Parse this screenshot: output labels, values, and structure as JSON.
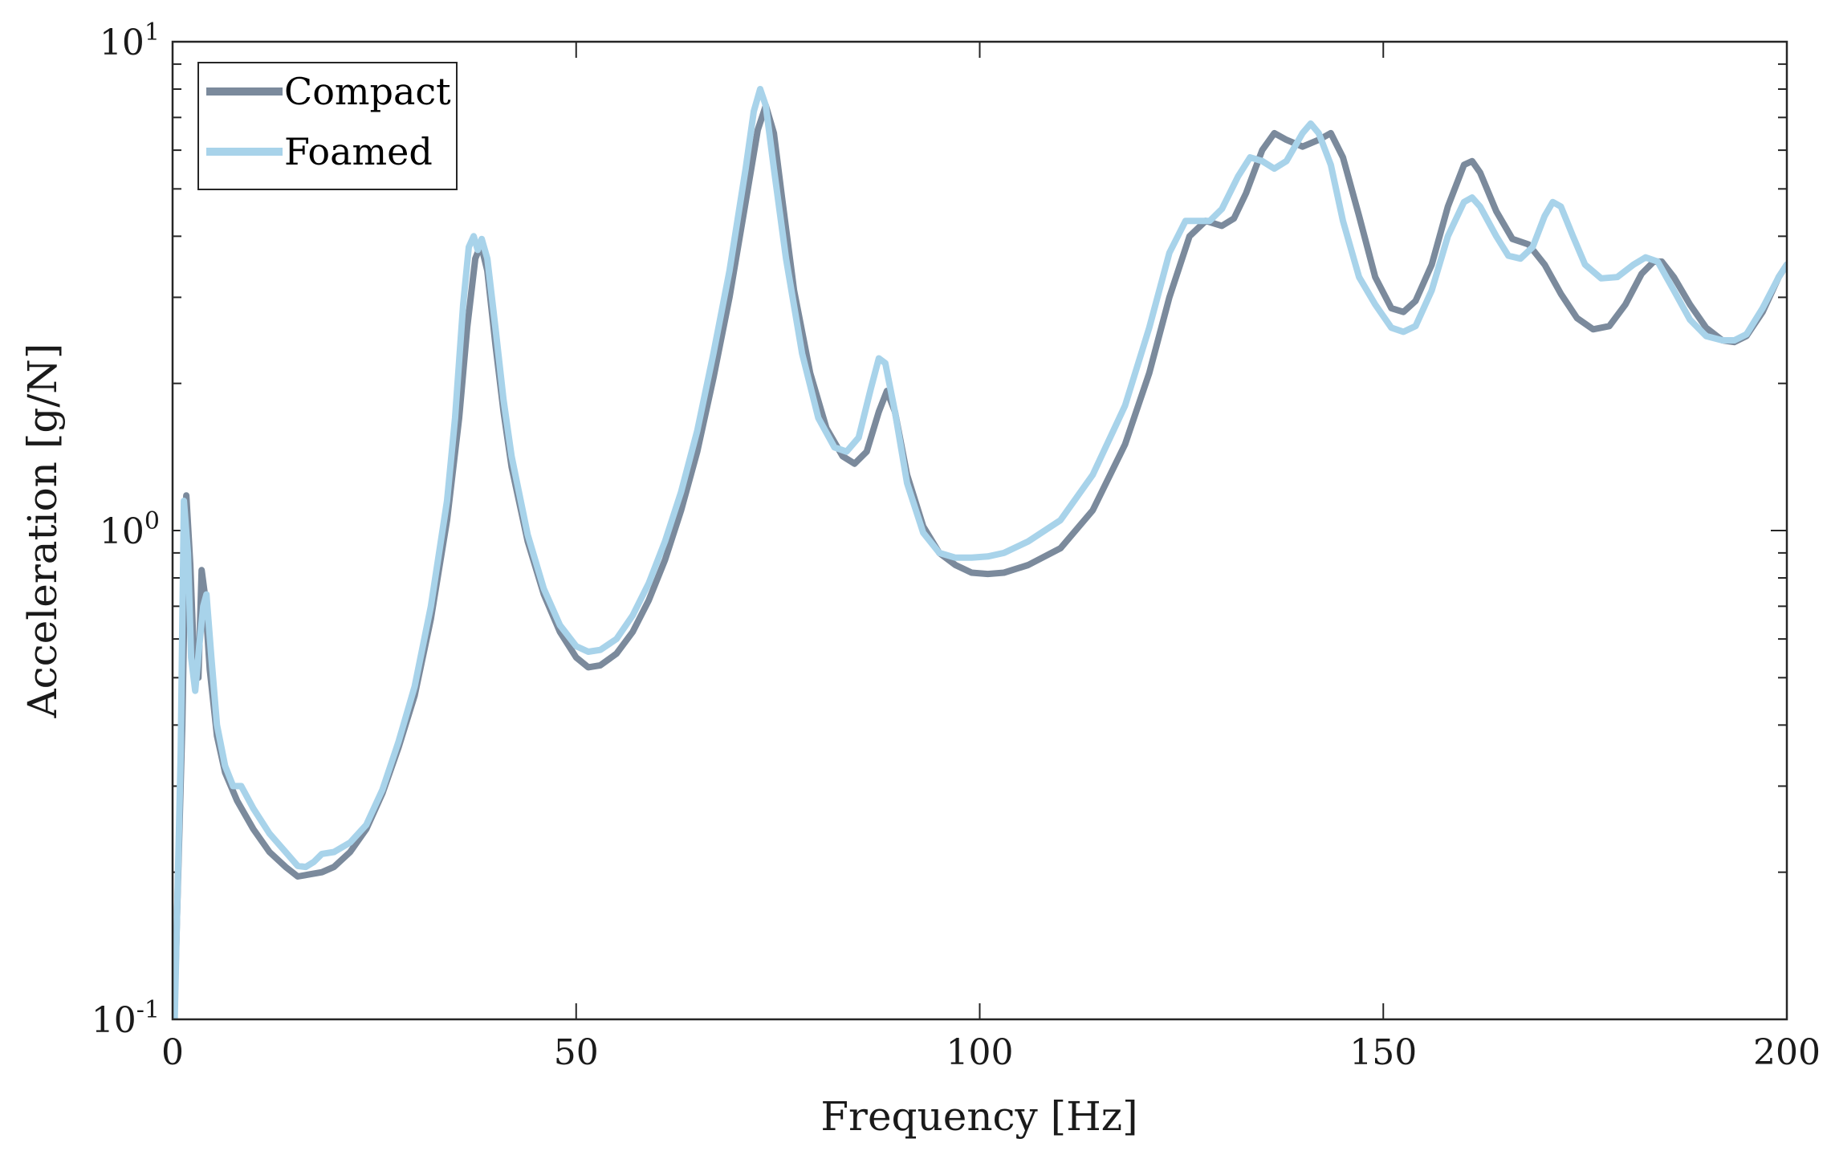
{
  "chart_data": {
    "type": "line",
    "title": "",
    "xlabel": "Frequency [Hz]",
    "ylabel": "Acceleration [g/N]",
    "xlim": [
      0,
      200
    ],
    "ylim": [
      0.1,
      10
    ],
    "yscale": "log",
    "grid": false,
    "legend_position": "top-left",
    "x_ticks": [
      {
        "value": 0,
        "label": "0"
      },
      {
        "value": 50,
        "label": "50"
      },
      {
        "value": 100,
        "label": "100"
      },
      {
        "value": 150,
        "label": "150"
      },
      {
        "value": 200,
        "label": "200"
      }
    ],
    "y_ticks": [
      {
        "value": 0.1,
        "base": "10",
        "exp": "-1"
      },
      {
        "value": 1,
        "base": "10",
        "exp": "0"
      },
      {
        "value": 10,
        "base": "10",
        "exp": "1"
      }
    ],
    "series": [
      {
        "name": "Compact",
        "color": "#7b8a9c",
        "points": [
          [
            0.2,
            0.1
          ],
          [
            1.2,
            0.4
          ],
          [
            1.7,
            1.18
          ],
          [
            2.2,
            0.85
          ],
          [
            2.7,
            0.52
          ],
          [
            3.2,
            0.5
          ],
          [
            3.6,
            0.83
          ],
          [
            4.0,
            0.74
          ],
          [
            4.6,
            0.52
          ],
          [
            5.5,
            0.38
          ],
          [
            6.5,
            0.32
          ],
          [
            8,
            0.28
          ],
          [
            10,
            0.245
          ],
          [
            12,
            0.22
          ],
          [
            14,
            0.205
          ],
          [
            15.5,
            0.196
          ],
          [
            17,
            0.198
          ],
          [
            18.5,
            0.2
          ],
          [
            20,
            0.205
          ],
          [
            22,
            0.22
          ],
          [
            24,
            0.245
          ],
          [
            26,
            0.29
          ],
          [
            28,
            0.36
          ],
          [
            30,
            0.46
          ],
          [
            32,
            0.66
          ],
          [
            34,
            1.05
          ],
          [
            35.5,
            1.7
          ],
          [
            36.5,
            2.6
          ],
          [
            37.5,
            3.6
          ],
          [
            38.2,
            3.85
          ],
          [
            39,
            3.4
          ],
          [
            40,
            2.4
          ],
          [
            41,
            1.75
          ],
          [
            42,
            1.35
          ],
          [
            44,
            0.95
          ],
          [
            46,
            0.74
          ],
          [
            48,
            0.62
          ],
          [
            50,
            0.55
          ],
          [
            51.5,
            0.525
          ],
          [
            53,
            0.53
          ],
          [
            55,
            0.56
          ],
          [
            57,
            0.62
          ],
          [
            59,
            0.72
          ],
          [
            61,
            0.87
          ],
          [
            63,
            1.1
          ],
          [
            65,
            1.45
          ],
          [
            67,
            2.05
          ],
          [
            69,
            3.0
          ],
          [
            71,
            4.7
          ],
          [
            72.5,
            6.6
          ],
          [
            73.5,
            7.4
          ],
          [
            74.5,
            6.5
          ],
          [
            75.5,
            4.8
          ],
          [
            77,
            3.1
          ],
          [
            79,
            2.1
          ],
          [
            81,
            1.62
          ],
          [
            83,
            1.42
          ],
          [
            84.5,
            1.37
          ],
          [
            86,
            1.45
          ],
          [
            87.5,
            1.75
          ],
          [
            88.5,
            1.93
          ],
          [
            89.5,
            1.75
          ],
          [
            91,
            1.3
          ],
          [
            93,
            1.02
          ],
          [
            95,
            0.9
          ],
          [
            97,
            0.85
          ],
          [
            99,
            0.82
          ],
          [
            101,
            0.815
          ],
          [
            103,
            0.82
          ],
          [
            106,
            0.85
          ],
          [
            110,
            0.92
          ],
          [
            114,
            1.1
          ],
          [
            118,
            1.5
          ],
          [
            121,
            2.1
          ],
          [
            123.5,
            3.0
          ],
          [
            126,
            4.0
          ],
          [
            128,
            4.3
          ],
          [
            130,
            4.2
          ],
          [
            131.5,
            4.35
          ],
          [
            133,
            4.9
          ],
          [
            135,
            6.0
          ],
          [
            136.5,
            6.5
          ],
          [
            138,
            6.3
          ],
          [
            140,
            6.1
          ],
          [
            142,
            6.3
          ],
          [
            143.5,
            6.5
          ],
          [
            145,
            5.8
          ],
          [
            147,
            4.4
          ],
          [
            149,
            3.3
          ],
          [
            151,
            2.85
          ],
          [
            152.5,
            2.8
          ],
          [
            154,
            2.95
          ],
          [
            156,
            3.5
          ],
          [
            158,
            4.6
          ],
          [
            160,
            5.6
          ],
          [
            161,
            5.7
          ],
          [
            162,
            5.4
          ],
          [
            164,
            4.5
          ],
          [
            166,
            3.95
          ],
          [
            168,
            3.85
          ],
          [
            170,
            3.5
          ],
          [
            172,
            3.05
          ],
          [
            174,
            2.72
          ],
          [
            176,
            2.58
          ],
          [
            178,
            2.62
          ],
          [
            180,
            2.9
          ],
          [
            182,
            3.35
          ],
          [
            183.5,
            3.55
          ],
          [
            184.5,
            3.55
          ],
          [
            186,
            3.3
          ],
          [
            188,
            2.9
          ],
          [
            190,
            2.6
          ],
          [
            192,
            2.45
          ],
          [
            193.5,
            2.43
          ],
          [
            195,
            2.5
          ],
          [
            197,
            2.8
          ],
          [
            199,
            3.3
          ],
          [
            200,
            3.5
          ]
        ]
      },
      {
        "name": "Foamed",
        "color": "#a8d3ea",
        "points": [
          [
            0.2,
            0.09
          ],
          [
            1.0,
            0.35
          ],
          [
            1.4,
            1.15
          ],
          [
            1.9,
            0.9
          ],
          [
            2.3,
            0.55
          ],
          [
            2.8,
            0.47
          ],
          [
            3.3,
            0.58
          ],
          [
            3.8,
            0.7
          ],
          [
            4.2,
            0.74
          ],
          [
            4.8,
            0.55
          ],
          [
            5.5,
            0.4
          ],
          [
            6.5,
            0.33
          ],
          [
            7.5,
            0.3
          ],
          [
            8.5,
            0.3
          ],
          [
            10,
            0.27
          ],
          [
            12,
            0.24
          ],
          [
            14,
            0.22
          ],
          [
            15.5,
            0.206
          ],
          [
            16.5,
            0.205
          ],
          [
            17.5,
            0.21
          ],
          [
            18.5,
            0.218
          ],
          [
            20,
            0.22
          ],
          [
            22,
            0.23
          ],
          [
            24,
            0.25
          ],
          [
            26,
            0.295
          ],
          [
            28,
            0.37
          ],
          [
            30,
            0.48
          ],
          [
            32,
            0.7
          ],
          [
            34,
            1.15
          ],
          [
            35,
            1.7
          ],
          [
            36,
            2.9
          ],
          [
            36.7,
            3.8
          ],
          [
            37.3,
            4.0
          ],
          [
            37.8,
            3.75
          ],
          [
            38.3,
            3.95
          ],
          [
            39,
            3.6
          ],
          [
            40,
            2.6
          ],
          [
            41,
            1.85
          ],
          [
            42,
            1.42
          ],
          [
            44,
            0.98
          ],
          [
            46,
            0.76
          ],
          [
            48,
            0.64
          ],
          [
            50,
            0.58
          ],
          [
            51.5,
            0.565
          ],
          [
            53,
            0.57
          ],
          [
            55,
            0.6
          ],
          [
            57,
            0.67
          ],
          [
            59,
            0.78
          ],
          [
            61,
            0.95
          ],
          [
            63,
            1.2
          ],
          [
            65,
            1.6
          ],
          [
            67,
            2.3
          ],
          [
            69,
            3.4
          ],
          [
            71,
            5.5
          ],
          [
            72,
            7.2
          ],
          [
            72.8,
            8.0
          ],
          [
            73.5,
            7.4
          ],
          [
            74.5,
            5.5
          ],
          [
            76,
            3.6
          ],
          [
            78,
            2.3
          ],
          [
            80,
            1.7
          ],
          [
            82,
            1.48
          ],
          [
            83.5,
            1.45
          ],
          [
            85,
            1.55
          ],
          [
            86.5,
            1.95
          ],
          [
            87.5,
            2.25
          ],
          [
            88.3,
            2.2
          ],
          [
            89.5,
            1.75
          ],
          [
            91,
            1.25
          ],
          [
            93,
            0.99
          ],
          [
            95,
            0.9
          ],
          [
            97,
            0.88
          ],
          [
            99,
            0.88
          ],
          [
            101,
            0.885
          ],
          [
            103,
            0.9
          ],
          [
            106,
            0.95
          ],
          [
            110,
            1.05
          ],
          [
            114,
            1.3
          ],
          [
            118,
            1.8
          ],
          [
            121,
            2.6
          ],
          [
            123.5,
            3.7
          ],
          [
            125.5,
            4.3
          ],
          [
            127,
            4.3
          ],
          [
            128.5,
            4.3
          ],
          [
            130,
            4.55
          ],
          [
            132,
            5.3
          ],
          [
            133.5,
            5.8
          ],
          [
            135,
            5.7
          ],
          [
            136.5,
            5.5
          ],
          [
            138,
            5.7
          ],
          [
            140,
            6.5
          ],
          [
            141,
            6.8
          ],
          [
            142,
            6.5
          ],
          [
            143.5,
            5.6
          ],
          [
            145,
            4.3
          ],
          [
            147,
            3.3
          ],
          [
            149,
            2.9
          ],
          [
            151,
            2.6
          ],
          [
            152.5,
            2.55
          ],
          [
            154,
            2.62
          ],
          [
            156,
            3.1
          ],
          [
            158,
            4.0
          ],
          [
            160,
            4.7
          ],
          [
            161,
            4.8
          ],
          [
            162,
            4.6
          ],
          [
            164,
            4.0
          ],
          [
            165.5,
            3.65
          ],
          [
            167,
            3.6
          ],
          [
            168.5,
            3.8
          ],
          [
            170,
            4.4
          ],
          [
            171,
            4.7
          ],
          [
            172,
            4.6
          ],
          [
            173.5,
            4.0
          ],
          [
            175,
            3.5
          ],
          [
            177,
            3.28
          ],
          [
            179,
            3.3
          ],
          [
            181,
            3.5
          ],
          [
            182.5,
            3.62
          ],
          [
            184,
            3.55
          ],
          [
            186,
            3.1
          ],
          [
            188,
            2.7
          ],
          [
            190,
            2.5
          ],
          [
            192,
            2.45
          ],
          [
            193.5,
            2.45
          ],
          [
            195,
            2.52
          ],
          [
            197,
            2.85
          ],
          [
            199,
            3.3
          ],
          [
            200,
            3.5
          ]
        ]
      }
    ]
  }
}
